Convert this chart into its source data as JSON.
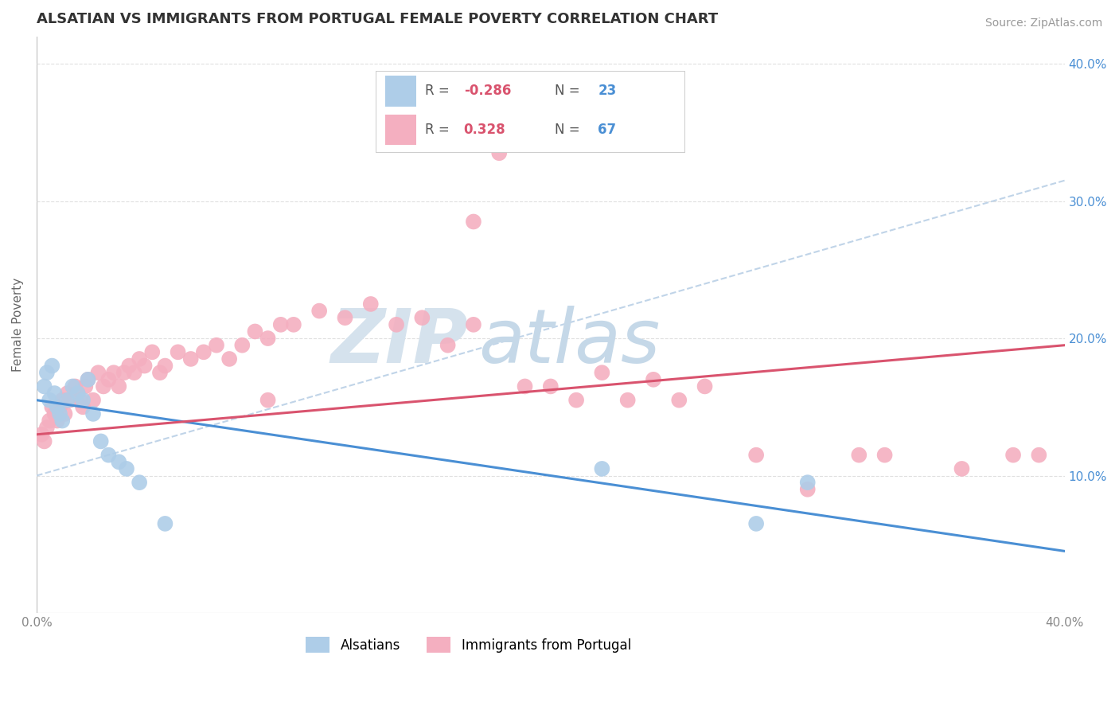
{
  "title": "ALSATIAN VS IMMIGRANTS FROM PORTUGAL FEMALE POVERTY CORRELATION CHART",
  "source": "Source: ZipAtlas.com",
  "ylabel": "Female Poverty",
  "xlim": [
    0.0,
    0.4
  ],
  "ylim": [
    0.0,
    0.42
  ],
  "alsatians_R": -0.286,
  "alsatians_N": 23,
  "portugal_R": 0.328,
  "portugal_N": 67,
  "alsatian_color": "#aecde8",
  "portugal_color": "#f4afc0",
  "alsatian_line_color": "#4a8fd4",
  "portugal_line_color": "#d9536e",
  "trendline_dashed_color": "#c0d4e8",
  "background_color": "#ffffff",
  "grid_color": "#e0e0e0",
  "watermark_zip_color": "#d5e2ed",
  "watermark_atlas_color": "#c5d8e8",
  "legend_border_color": "#cccccc",
  "r_value_color": "#d9536e",
  "n_value_color": "#4a8fd4",
  "alsatians_x": [
    0.003,
    0.004,
    0.005,
    0.006,
    0.007,
    0.008,
    0.009,
    0.01,
    0.012,
    0.014,
    0.016,
    0.018,
    0.02,
    0.022,
    0.025,
    0.028,
    0.032,
    0.035,
    0.04,
    0.05,
    0.22,
    0.28,
    0.3
  ],
  "alsatians_y": [
    0.165,
    0.175,
    0.155,
    0.18,
    0.16,
    0.15,
    0.145,
    0.14,
    0.155,
    0.165,
    0.16,
    0.155,
    0.17,
    0.145,
    0.125,
    0.115,
    0.11,
    0.105,
    0.095,
    0.065,
    0.105,
    0.065,
    0.095
  ],
  "portugal_x": [
    0.002,
    0.003,
    0.004,
    0.005,
    0.006,
    0.007,
    0.008,
    0.009,
    0.01,
    0.011,
    0.012,
    0.013,
    0.015,
    0.016,
    0.017,
    0.018,
    0.019,
    0.02,
    0.022,
    0.024,
    0.026,
    0.028,
    0.03,
    0.032,
    0.034,
    0.036,
    0.038,
    0.04,
    0.042,
    0.045,
    0.048,
    0.05,
    0.055,
    0.06,
    0.065,
    0.07,
    0.075,
    0.08,
    0.085,
    0.09,
    0.095,
    0.1,
    0.11,
    0.12,
    0.13,
    0.14,
    0.15,
    0.16,
    0.17,
    0.18,
    0.19,
    0.2,
    0.21,
    0.22,
    0.23,
    0.24,
    0.25,
    0.26,
    0.28,
    0.3,
    0.33,
    0.36,
    0.38,
    0.39,
    0.17,
    0.09,
    0.32
  ],
  "portugal_y": [
    0.13,
    0.125,
    0.135,
    0.14,
    0.15,
    0.145,
    0.14,
    0.15,
    0.155,
    0.145,
    0.16,
    0.155,
    0.165,
    0.16,
    0.155,
    0.15,
    0.165,
    0.17,
    0.155,
    0.175,
    0.165,
    0.17,
    0.175,
    0.165,
    0.175,
    0.18,
    0.175,
    0.185,
    0.18,
    0.19,
    0.175,
    0.18,
    0.19,
    0.185,
    0.19,
    0.195,
    0.185,
    0.195,
    0.205,
    0.2,
    0.21,
    0.21,
    0.22,
    0.215,
    0.225,
    0.21,
    0.215,
    0.195,
    0.21,
    0.335,
    0.165,
    0.165,
    0.155,
    0.175,
    0.155,
    0.17,
    0.155,
    0.165,
    0.115,
    0.09,
    0.115,
    0.105,
    0.115,
    0.115,
    0.285,
    0.155,
    0.115
  ],
  "blue_trendline_x0": 0.0,
  "blue_trendline_y0": 0.155,
  "blue_trendline_x1": 0.4,
  "blue_trendline_y1": 0.045,
  "pink_trendline_x0": 0.0,
  "pink_trendline_y0": 0.13,
  "pink_trendline_x1": 0.4,
  "pink_trendline_y1": 0.195,
  "dashed_trendline_x0": 0.0,
  "dashed_trendline_y0": 0.1,
  "dashed_trendline_x1": 0.4,
  "dashed_trendline_y1": 0.315
}
